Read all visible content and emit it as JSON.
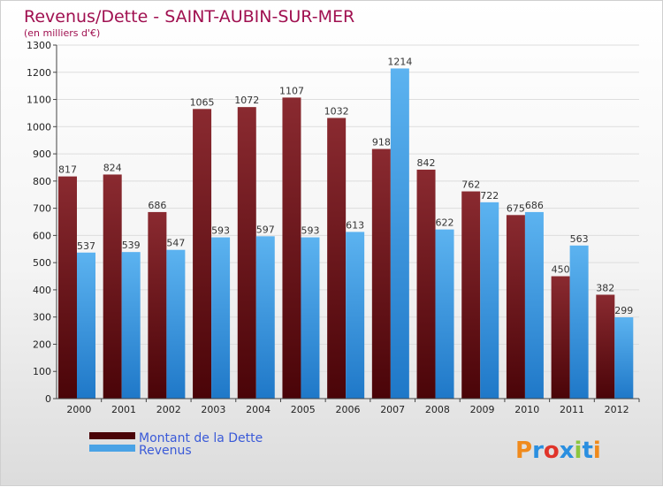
{
  "chart_data": {
    "type": "bar",
    "title": "Revenus/Dette - SAINT-AUBIN-SUR-MER",
    "subtitle": "(en milliers d'€)",
    "xlabel": "",
    "ylabel": "",
    "ylim": [
      0,
      1300
    ],
    "ytick_step": 100,
    "grid": true,
    "categories": [
      "2000",
      "2001",
      "2002",
      "2003",
      "2004",
      "2005",
      "2006",
      "2007",
      "2008",
      "2009",
      "2010",
      "2011",
      "2012"
    ],
    "series": [
      {
        "name": "Montant de la Dette",
        "color": "#7a1c22",
        "values": [
          817,
          824,
          686,
          1065,
          1072,
          1107,
          1032,
          918,
          842,
          762,
          675,
          450,
          382
        ]
      },
      {
        "name": "Revenus",
        "color": "#4aa3e6",
        "values": [
          537,
          539,
          547,
          593,
          597,
          593,
          613,
          1214,
          622,
          722,
          686,
          563,
          299
        ]
      }
    ],
    "legend": "bottom-left"
  },
  "branding": {
    "logo_text": "Proxiti",
    "logo_colors": [
      "#f08a1c",
      "#2a8fe0",
      "#e0342a",
      "#2a8fe0",
      "#8cc63f",
      "#2a8fe0",
      "#f08a1c"
    ]
  }
}
